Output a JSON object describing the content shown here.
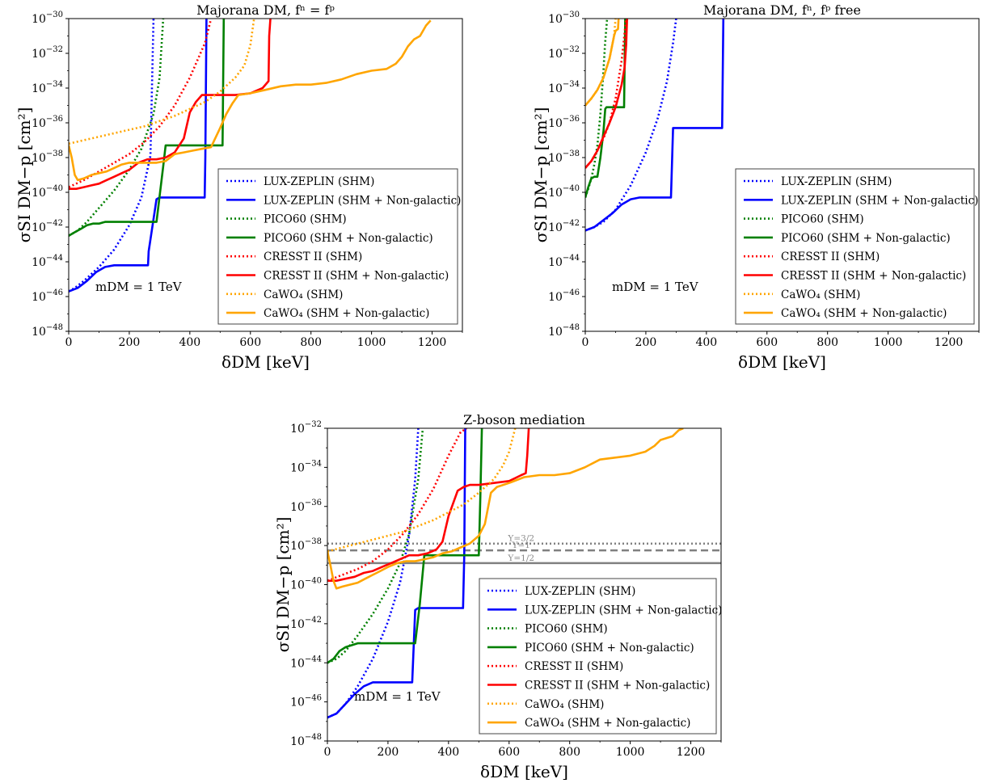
{
  "chart_data": [
    {
      "type": "line",
      "title": "Majorana DM, fⁿ = fᵖ",
      "xlabel": "δDM [keV]",
      "ylabel": "σSI DM−p [cm²]",
      "xlim": [
        0,
        1300
      ],
      "ylim": [
        -48,
        -30
      ],
      "y_scale": "log10",
      "xticks": [
        0,
        200,
        400,
        600,
        800,
        1000,
        1200
      ],
      "yticks": [
        -48,
        -46,
        -44,
        -42,
        -40,
        -38,
        -36,
        -34,
        -32,
        -30
      ],
      "annotation": "mDM = 1 TeV",
      "legend_position": "lower-right",
      "series": [
        {
          "name": "LUX-ZEPLIN (SHM)",
          "color": "#0000ff",
          "style": "dotted",
          "x": [
            0,
            20,
            50,
            100,
            150,
            200,
            240,
            270,
            280
          ],
          "y": [
            -45.7,
            -45.5,
            -45.1,
            -44.3,
            -43.3,
            -41.9,
            -40.3,
            -37.9,
            -30
          ]
        },
        {
          "name": "LUX-ZEPLIN (SHM + Non-galactic)",
          "color": "#0000ff",
          "style": "solid",
          "x": [
            0,
            30,
            60,
            90,
            120,
            150,
            180,
            210,
            240,
            262,
            264,
            290,
            300,
            320,
            440,
            449,
            451,
            455
          ],
          "y": [
            -45.7,
            -45.5,
            -45.1,
            -44.6,
            -44.3,
            -44.2,
            -44.2,
            -44.2,
            -44.2,
            -44.2,
            -43.4,
            -40.4,
            -40.3,
            -40.3,
            -40.3,
            -40.3,
            -38.0,
            -30
          ]
        },
        {
          "name": "PICO60 (SHM)",
          "color": "#008000",
          "style": "dotted",
          "x": [
            0,
            30,
            60,
            100,
            150,
            200,
            240,
            280,
            300,
            312
          ],
          "y": [
            -42.5,
            -42.2,
            -41.7,
            -40.9,
            -39.9,
            -38.7,
            -37.5,
            -35.5,
            -33.4,
            -30
          ]
        },
        {
          "name": "PICO60 (SHM + Non-galactic)",
          "color": "#008000",
          "style": "solid",
          "x": [
            0,
            20,
            40,
            60,
            80,
            100,
            120,
            150,
            200,
            250,
            290,
            312,
            320,
            400,
            490,
            508,
            512
          ],
          "y": [
            -42.5,
            -42.3,
            -42.1,
            -41.9,
            -41.8,
            -41.8,
            -41.7,
            -41.7,
            -41.7,
            -41.7,
            -41.7,
            -38.5,
            -37.3,
            -37.3,
            -37.3,
            -37.3,
            -30
          ]
        },
        {
          "name": "CRESST II (SHM)",
          "color": "#ff0000",
          "style": "dotted",
          "x": [
            0,
            50,
            100,
            150,
            200,
            250,
            300,
            350,
            400,
            450,
            470
          ],
          "y": [
            -39.7,
            -39.3,
            -38.8,
            -38.3,
            -37.8,
            -37.1,
            -36.2,
            -35.0,
            -33.4,
            -31.4,
            -30
          ]
        },
        {
          "name": "CRESST II (SHM + Non-galactic)",
          "color": "#ff0000",
          "style": "solid",
          "x": [
            0,
            25,
            50,
            75,
            100,
            125,
            150,
            175,
            200,
            230,
            260,
            290,
            320,
            350,
            380,
            400,
            420,
            440,
            460,
            500,
            550,
            600,
            640,
            660,
            662,
            666
          ],
          "y": [
            -39.8,
            -39.8,
            -39.7,
            -39.6,
            -39.5,
            -39.3,
            -39.1,
            -38.9,
            -38.7,
            -38.3,
            -38.1,
            -38.1,
            -38.0,
            -37.7,
            -36.9,
            -35.4,
            -34.8,
            -34.4,
            -34.4,
            -34.4,
            -34.4,
            -34.3,
            -34.0,
            -33.6,
            -31.0,
            -30
          ]
        },
        {
          "name": "CaWO₄ (SHM)",
          "color": "#ffa500",
          "style": "dotted",
          "x": [
            0,
            50,
            100,
            150,
            200,
            250,
            300,
            350,
            400,
            450,
            500,
            550,
            580,
            600,
            612
          ],
          "y": [
            -37.2,
            -37.0,
            -36.8,
            -36.6,
            -36.4,
            -36.2,
            -35.9,
            -35.6,
            -35.2,
            -34.8,
            -34.2,
            -33.4,
            -32.7,
            -31.5,
            -30
          ]
        },
        {
          "name": "CaWO₄ (SHM + Non-galactic)",
          "color": "#ffa500",
          "style": "solid",
          "x": [
            0,
            10,
            20,
            30,
            50,
            75,
            100,
            125,
            150,
            175,
            200,
            230,
            260,
            290,
            320,
            350,
            380,
            410,
            440,
            470,
            500,
            520,
            540,
            560,
            600,
            650,
            700,
            750,
            800,
            850,
            900,
            950,
            1000,
            1050,
            1080,
            1100,
            1120,
            1140,
            1160,
            1180,
            1195
          ],
          "y": [
            -37.3,
            -38.0,
            -39.0,
            -39.3,
            -39.2,
            -39.0,
            -38.9,
            -38.8,
            -38.6,
            -38.4,
            -38.3,
            -38.3,
            -38.3,
            -38.3,
            -38.2,
            -37.8,
            -37.7,
            -37.6,
            -37.5,
            -37.4,
            -36.3,
            -35.5,
            -34.9,
            -34.4,
            -34.3,
            -34.1,
            -33.9,
            -33.8,
            -33.8,
            -33.7,
            -33.5,
            -33.2,
            -33.0,
            -32.9,
            -32.6,
            -32.2,
            -31.6,
            -31.2,
            -31.0,
            -30.4,
            -30.1
          ]
        }
      ]
    },
    {
      "type": "line",
      "title": "Majorana DM, fⁿ, fᵖ free",
      "xlabel": "δDM [keV]",
      "ylabel": "σSI DM−p [cm²]",
      "xlim": [
        0,
        1300
      ],
      "ylim": [
        -48,
        -30
      ],
      "y_scale": "log10",
      "xticks": [
        0,
        200,
        400,
        600,
        800,
        1000,
        1200
      ],
      "yticks": [
        -48,
        -46,
        -44,
        -42,
        -40,
        -38,
        -36,
        -34,
        -32,
        -30
      ],
      "annotation": "mDM = 1 TeV",
      "legend_position": "lower-right",
      "series": [
        {
          "name": "LUX-ZEPLIN (SHM)",
          "color": "#0000ff",
          "style": "dotted",
          "x": [
            0,
            30,
            60,
            100,
            150,
            200,
            240,
            270,
            290,
            300
          ],
          "y": [
            -42.2,
            -42.0,
            -41.7,
            -41.0,
            -39.6,
            -37.7,
            -35.7,
            -33.6,
            -31.4,
            -30
          ]
        },
        {
          "name": "LUX-ZEPLIN (SHM + Non-galactic)",
          "color": "#0000ff",
          "style": "solid",
          "x": [
            0,
            30,
            60,
            90,
            120,
            150,
            180,
            210,
            240,
            270,
            283,
            290,
            300,
            400,
            452,
            456
          ],
          "y": [
            -42.2,
            -42.0,
            -41.6,
            -41.2,
            -40.7,
            -40.4,
            -40.3,
            -40.3,
            -40.3,
            -40.3,
            -40.3,
            -36.3,
            -36.3,
            -36.3,
            -36.3,
            -30
          ]
        },
        {
          "name": "PICO60 (SHM)",
          "color": "#008000",
          "style": "dotted",
          "x": [
            0,
            10,
            20,
            30,
            40,
            50,
            60,
            65,
            72
          ],
          "y": [
            -40.3,
            -39.8,
            -39.2,
            -38.4,
            -37.3,
            -35.5,
            -33.0,
            -31.5,
            -30
          ]
        },
        {
          "name": "PICO60 (SHM + Non-galactic)",
          "color": "#008000",
          "style": "solid",
          "x": [
            0,
            10,
            20,
            30,
            40,
            50,
            60,
            66,
            70,
            100,
            128,
            132
          ],
          "y": [
            -40.3,
            -39.7,
            -39.2,
            -39.1,
            -39.1,
            -38.0,
            -36.5,
            -35.2,
            -35.1,
            -35.1,
            -35.1,
            -30
          ]
        },
        {
          "name": "CRESST II (SHM)",
          "color": "#ff0000",
          "style": "dotted",
          "x": [
            0,
            20,
            40,
            60,
            80,
            100,
            120,
            135
          ],
          "y": [
            -38.6,
            -38.2,
            -37.6,
            -36.9,
            -36.0,
            -34.6,
            -32.4,
            -30
          ]
        },
        {
          "name": "CRESST II (SHM + Non-galactic)",
          "color": "#ff0000",
          "style": "solid",
          "x": [
            0,
            20,
            40,
            60,
            80,
            100,
            120,
            130,
            135,
            138
          ],
          "y": [
            -38.6,
            -38.2,
            -37.6,
            -36.8,
            -36.0,
            -35.1,
            -33.8,
            -32.8,
            -31.5,
            -30
          ]
        },
        {
          "name": "CaWO₄ (SHM)",
          "color": "#ffa500",
          "style": "dotted",
          "x": [
            0,
            20,
            40,
            60,
            80,
            95,
            100
          ],
          "y": [
            -35.0,
            -34.6,
            -34.1,
            -33.4,
            -32.3,
            -31.0,
            -30
          ]
        },
        {
          "name": "CaWO₄ (SHM + Non-galactic)",
          "color": "#ffa500",
          "style": "solid",
          "x": [
            0,
            20,
            40,
            60,
            80,
            95,
            100,
            108,
            110
          ],
          "y": [
            -35.0,
            -34.6,
            -34.1,
            -33.4,
            -32.3,
            -31.0,
            -30.7,
            -30.6,
            -30
          ]
        }
      ]
    },
    {
      "type": "line",
      "title": "Z-boson mediation",
      "xlabel": "δDM [keV]",
      "ylabel": "σSI DM−p [cm²]",
      "xlim": [
        0,
        1300
      ],
      "ylim": [
        -48,
        -32
      ],
      "y_scale": "log10",
      "xticks": [
        0,
        200,
        400,
        600,
        800,
        1000,
        1200
      ],
      "yticks": [
        -48,
        -46,
        -44,
        -42,
        -40,
        -38,
        -36,
        -34,
        -32
      ],
      "annotation": "mDM = 1 TeV",
      "legend_position": "lower-right",
      "hlines": [
        {
          "label": "Y=3/2",
          "y": -37.9,
          "style": "dotted",
          "color": "#808080"
        },
        {
          "label": "Y=1",
          "y": -38.25,
          "style": "dashed",
          "color": "#808080"
        },
        {
          "label": "Y=1/2",
          "y": -38.9,
          "style": "solid",
          "color": "#808080"
        }
      ],
      "series": [
        {
          "name": "LUX-ZEPLIN (SHM)",
          "color": "#0000ff",
          "style": "dotted",
          "x": [
            0,
            30,
            60,
            100,
            150,
            200,
            240,
            270,
            290,
            300
          ],
          "y": [
            -46.8,
            -46.6,
            -46.1,
            -45.2,
            -43.8,
            -41.9,
            -39.9,
            -37.5,
            -34.6,
            -32
          ]
        },
        {
          "name": "LUX-ZEPLIN (SHM + Non-galactic)",
          "color": "#0000ff",
          "style": "solid",
          "x": [
            0,
            30,
            60,
            90,
            120,
            150,
            180,
            210,
            240,
            270,
            280,
            290,
            300,
            400,
            448,
            452,
            455
          ],
          "y": [
            -46.8,
            -46.6,
            -46.1,
            -45.6,
            -45.2,
            -45.0,
            -45.0,
            -45.0,
            -45.0,
            -45.0,
            -45.0,
            -41.3,
            -41.2,
            -41.2,
            -41.2,
            -38.5,
            -32
          ]
        },
        {
          "name": "PICO60 (SHM)",
          "color": "#008000",
          "style": "dotted",
          "x": [
            0,
            30,
            60,
            100,
            150,
            200,
            240,
            270,
            300,
            315
          ],
          "y": [
            -44.0,
            -43.8,
            -43.4,
            -42.6,
            -41.5,
            -40.2,
            -38.9,
            -37.4,
            -34.6,
            -32
          ]
        },
        {
          "name": "PICO60 (SHM + Non-galactic)",
          "color": "#008000",
          "style": "solid",
          "x": [
            0,
            20,
            40,
            60,
            80,
            100,
            120,
            150,
            200,
            250,
            290,
            305,
            320,
            400,
            500,
            505,
            510
          ],
          "y": [
            -44.0,
            -43.8,
            -43.4,
            -43.2,
            -43.1,
            -43.0,
            -43.0,
            -43.0,
            -43.0,
            -43.0,
            -43.0,
            -41.0,
            -38.5,
            -38.5,
            -38.5,
            -35.5,
            -32
          ]
        },
        {
          "name": "CRESST II (SHM)",
          "color": "#ff0000",
          "style": "dotted",
          "x": [
            0,
            50,
            100,
            150,
            200,
            250,
            300,
            350,
            400,
            440,
            460
          ],
          "y": [
            -39.8,
            -39.5,
            -39.2,
            -38.8,
            -38.2,
            -37.4,
            -36.4,
            -35.1,
            -33.4,
            -32.2,
            -32
          ]
        },
        {
          "name": "CRESST II (SHM + Non-galactic)",
          "color": "#ff0000",
          "style": "solid",
          "x": [
            0,
            30,
            60,
            90,
            120,
            150,
            180,
            210,
            240,
            270,
            300,
            330,
            360,
            380,
            400,
            430,
            450,
            470,
            500,
            550,
            600,
            640,
            655,
            660,
            665
          ],
          "y": [
            -39.8,
            -39.8,
            -39.7,
            -39.6,
            -39.4,
            -39.3,
            -39.1,
            -38.9,
            -38.7,
            -38.5,
            -38.5,
            -38.4,
            -38.2,
            -37.8,
            -36.5,
            -35.2,
            -35.0,
            -34.9,
            -34.9,
            -34.8,
            -34.7,
            -34.4,
            -34.3,
            -33.4,
            -32
          ]
        },
        {
          "name": "CaWO₄ (SHM)",
          "color": "#ffa500",
          "style": "dotted",
          "x": [
            0,
            50,
            100,
            150,
            200,
            250,
            300,
            350,
            400,
            450,
            500,
            550,
            580,
            600,
            620
          ],
          "y": [
            -38.3,
            -38.1,
            -37.9,
            -37.7,
            -37.5,
            -37.3,
            -37.0,
            -36.7,
            -36.3,
            -35.9,
            -35.3,
            -34.6,
            -33.9,
            -33.2,
            -32
          ]
        },
        {
          "name": "CaWO₄ (SHM + Non-galactic)",
          "color": "#ffa500",
          "style": "solid",
          "x": [
            0,
            10,
            20,
            30,
            50,
            75,
            100,
            125,
            150,
            175,
            200,
            230,
            260,
            290,
            320,
            350,
            380,
            410,
            440,
            470,
            500,
            520,
            540,
            560,
            600,
            650,
            700,
            750,
            800,
            850,
            900,
            950,
            1000,
            1050,
            1080,
            1100,
            1120,
            1140,
            1160,
            1175
          ],
          "y": [
            -38.3,
            -39.0,
            -39.8,
            -40.2,
            -40.1,
            -40.0,
            -39.9,
            -39.7,
            -39.5,
            -39.3,
            -39.1,
            -38.9,
            -38.8,
            -38.8,
            -38.7,
            -38.6,
            -38.4,
            -38.3,
            -38.1,
            -37.9,
            -37.5,
            -36.9,
            -35.3,
            -35.0,
            -34.8,
            -34.5,
            -34.4,
            -34.4,
            -34.3,
            -34.0,
            -33.6,
            -33.5,
            -33.4,
            -33.2,
            -32.9,
            -32.6,
            -32.5,
            -32.4,
            -32.1,
            -32
          ]
        }
      ]
    }
  ]
}
